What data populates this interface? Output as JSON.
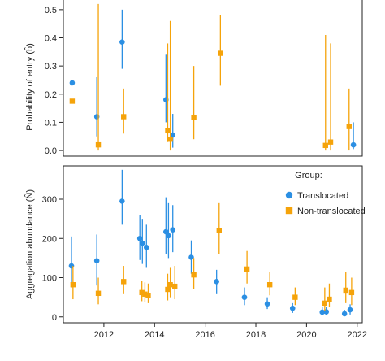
{
  "colors": {
    "translocated": "#2b8fe3",
    "non_translocated": "#f5a30a",
    "axis": "#222222"
  },
  "legend": {
    "title": "Group:",
    "entries": [
      {
        "name": "Translocated",
        "marker": "circle",
        "color": "#2b8fe3"
      },
      {
        "name": "Non-translocated",
        "marker": "square",
        "color": "#f5a30a"
      }
    ],
    "placement": "top-right of lower panel"
  },
  "chart_data": [
    {
      "type": "scatter",
      "panel": "top",
      "ylabel": "Probability of entry (b̂)",
      "xlim": [
        2010.4,
        2022.2
      ],
      "ylim": [
        -0.02,
        0.54
      ],
      "yticks": [
        0.0,
        0.1,
        0.2,
        0.3,
        0.4,
        0.5
      ],
      "ytick_labels": [
        "0.0",
        "0.1",
        "0.2",
        "0.3",
        "0.4",
        "0.5"
      ],
      "series": [
        {
          "name": "Translocated",
          "points": [
            {
              "x": 2010.75,
              "y": 0.24,
              "lo": 0.24,
              "hi": 0.24
            },
            {
              "x": 2011.72,
              "y": 0.12,
              "lo": 0.05,
              "hi": 0.26
            },
            {
              "x": 2012.72,
              "y": 0.385,
              "lo": 0.29,
              "hi": 0.5
            },
            {
              "x": 2014.45,
              "y": 0.18,
              "lo": 0.1,
              "hi": 0.34
            },
            {
              "x": 2014.72,
              "y": 0.055,
              "lo": 0.01,
              "hi": 0.13
            },
            {
              "x": 2021.85,
              "y": 0.02,
              "lo": 0.005,
              "hi": 0.1
            }
          ]
        },
        {
          "name": "Non-translocated",
          "points": [
            {
              "x": 2010.75,
              "y": 0.175,
              "lo": 0.175,
              "hi": 0.175
            },
            {
              "x": 2011.78,
              "y": 0.02,
              "lo": 0.0,
              "hi": 0.52
            },
            {
              "x": 2012.78,
              "y": 0.12,
              "lo": 0.06,
              "hi": 0.22
            },
            {
              "x": 2014.52,
              "y": 0.07,
              "lo": 0.03,
              "hi": 0.38
            },
            {
              "x": 2014.62,
              "y": 0.04,
              "lo": 0.0,
              "hi": 0.46
            },
            {
              "x": 2015.55,
              "y": 0.118,
              "lo": 0.04,
              "hi": 0.3
            },
            {
              "x": 2016.6,
              "y": 0.345,
              "lo": 0.23,
              "hi": 0.48
            },
            {
              "x": 2020.75,
              "y": 0.018,
              "lo": 0.0,
              "hi": 0.41
            },
            {
              "x": 2020.95,
              "y": 0.03,
              "lo": 0.0,
              "hi": 0.38
            },
            {
              "x": 2021.68,
              "y": 0.085,
              "lo": 0.0,
              "hi": 0.22
            }
          ]
        }
      ]
    },
    {
      "type": "scatter",
      "panel": "bottom",
      "ylabel": "Aggregation abundance (N̂)",
      "xlabel": "",
      "xlim": [
        2010.4,
        2022.2
      ],
      "ylim": [
        -15,
        385
      ],
      "yticks": [
        0,
        100,
        200,
        300
      ],
      "ytick_labels": [
        "0",
        "100",
        "200",
        "300"
      ],
      "xticks": [
        2012,
        2014,
        2016,
        2018,
        2020,
        2022
      ],
      "xtick_labels": [
        "2012",
        "2014",
        "2016",
        "2018",
        "2020",
        "2022"
      ],
      "series": [
        {
          "name": "Translocated",
          "points": [
            {
              "x": 2010.72,
              "y": 130,
              "lo": 75,
              "hi": 205
            },
            {
              "x": 2011.72,
              "y": 143,
              "lo": 80,
              "hi": 210
            },
            {
              "x": 2012.72,
              "y": 295,
              "lo": 235,
              "hi": 375
            },
            {
              "x": 2013.42,
              "y": 200,
              "lo": 145,
              "hi": 260
            },
            {
              "x": 2013.52,
              "y": 188,
              "lo": 135,
              "hi": 250
            },
            {
              "x": 2013.68,
              "y": 177,
              "lo": 125,
              "hi": 235
            },
            {
              "x": 2014.45,
              "y": 217,
              "lo": 160,
              "hi": 305
            },
            {
              "x": 2014.55,
              "y": 207,
              "lo": 150,
              "hi": 290
            },
            {
              "x": 2014.72,
              "y": 222,
              "lo": 165,
              "hi": 285
            },
            {
              "x": 2015.45,
              "y": 152,
              "lo": 110,
              "hi": 195
            },
            {
              "x": 2016.45,
              "y": 90,
              "lo": 60,
              "hi": 120
            },
            {
              "x": 2017.55,
              "y": 50,
              "lo": 30,
              "hi": 75
            },
            {
              "x": 2018.45,
              "y": 33,
              "lo": 20,
              "hi": 50
            },
            {
              "x": 2019.45,
              "y": 22,
              "lo": 10,
              "hi": 35
            },
            {
              "x": 2020.62,
              "y": 12,
              "lo": 4,
              "hi": 25
            },
            {
              "x": 2020.78,
              "y": 13,
              "lo": 4,
              "hi": 25
            },
            {
              "x": 2021.5,
              "y": 8,
              "lo": 2,
              "hi": 18
            },
            {
              "x": 2021.72,
              "y": 18,
              "lo": 6,
              "hi": 32
            }
          ]
        },
        {
          "name": "Non-translocated",
          "points": [
            {
              "x": 2010.78,
              "y": 82,
              "lo": 45,
              "hi": 130
            },
            {
              "x": 2011.78,
              "y": 60,
              "lo": 32,
              "hi": 100
            },
            {
              "x": 2012.78,
              "y": 90,
              "lo": 60,
              "hi": 130
            },
            {
              "x": 2013.5,
              "y": 62,
              "lo": 40,
              "hi": 92
            },
            {
              "x": 2013.62,
              "y": 58,
              "lo": 38,
              "hi": 88
            },
            {
              "x": 2013.75,
              "y": 55,
              "lo": 35,
              "hi": 85
            },
            {
              "x": 2014.52,
              "y": 70,
              "lo": 42,
              "hi": 110
            },
            {
              "x": 2014.62,
              "y": 82,
              "lo": 50,
              "hi": 125
            },
            {
              "x": 2014.8,
              "y": 78,
              "lo": 45,
              "hi": 130
            },
            {
              "x": 2015.55,
              "y": 107,
              "lo": 70,
              "hi": 150
            },
            {
              "x": 2016.55,
              "y": 220,
              "lo": 160,
              "hi": 290
            },
            {
              "x": 2017.65,
              "y": 122,
              "lo": 85,
              "hi": 168
            },
            {
              "x": 2018.55,
              "y": 82,
              "lo": 55,
              "hi": 115
            },
            {
              "x": 2019.55,
              "y": 50,
              "lo": 30,
              "hi": 75
            },
            {
              "x": 2020.72,
              "y": 35,
              "lo": 15,
              "hi": 75
            },
            {
              "x": 2020.9,
              "y": 45,
              "lo": 25,
              "hi": 85
            },
            {
              "x": 2021.55,
              "y": 68,
              "lo": 35,
              "hi": 115
            },
            {
              "x": 2021.78,
              "y": 62,
              "lo": 30,
              "hi": 100
            }
          ]
        }
      ]
    }
  ]
}
